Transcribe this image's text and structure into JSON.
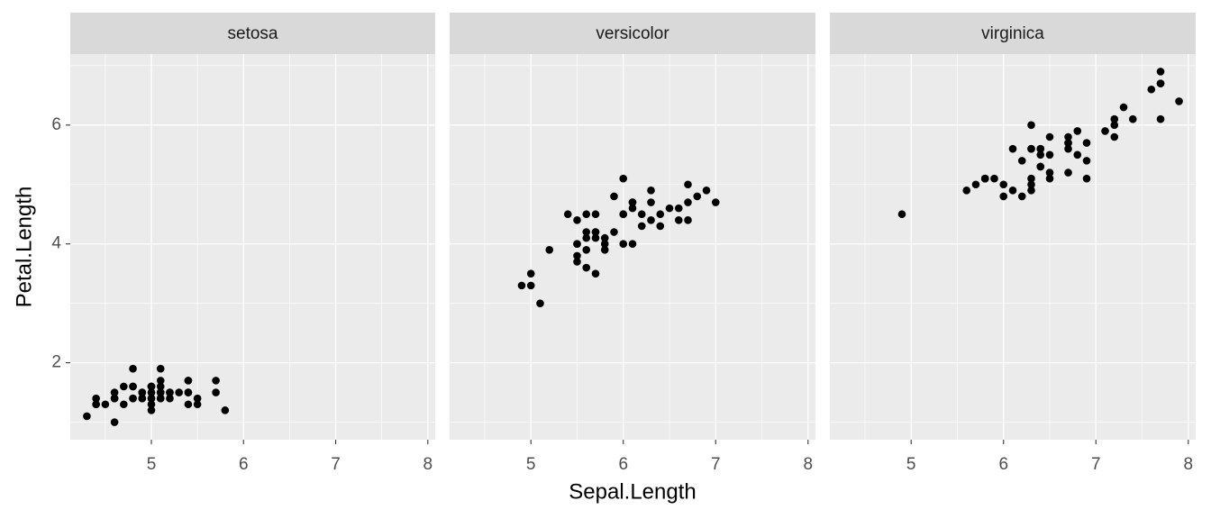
{
  "xlabel": "Sepal.Length",
  "ylabel": "Petal.Length",
  "chart_data": [
    {
      "type": "scatter",
      "title": "setosa",
      "color": "#000000",
      "x": [
        5.1,
        4.9,
        4.7,
        4.6,
        5.0,
        5.4,
        4.6,
        5.0,
        4.4,
        4.9,
        5.4,
        4.8,
        4.8,
        4.3,
        5.8,
        5.7,
        5.4,
        5.1,
        5.7,
        5.1,
        5.4,
        5.1,
        4.6,
        5.1,
        4.8,
        5.0,
        5.0,
        5.2,
        5.2,
        4.7,
        4.8,
        5.4,
        5.2,
        5.5,
        4.9,
        5.0,
        5.5,
        4.9,
        4.4,
        5.1,
        5.0,
        4.5,
        4.4,
        5.0,
        5.1,
        4.8,
        5.1,
        4.6,
        5.3,
        5.0
      ],
      "y": [
        1.4,
        1.4,
        1.3,
        1.5,
        1.4,
        1.7,
        1.4,
        1.5,
        1.4,
        1.5,
        1.5,
        1.6,
        1.4,
        1.1,
        1.2,
        1.5,
        1.3,
        1.4,
        1.7,
        1.5,
        1.7,
        1.5,
        1.0,
        1.7,
        1.9,
        1.6,
        1.6,
        1.5,
        1.4,
        1.6,
        1.6,
        1.5,
        1.5,
        1.4,
        1.5,
        1.2,
        1.3,
        1.4,
        1.3,
        1.5,
        1.3,
        1.3,
        1.3,
        1.6,
        1.9,
        1.4,
        1.6,
        1.4,
        1.5,
        1.4
      ],
      "xlim": [
        4.12,
        8.08
      ],
      "ylim": [
        0.705,
        7.195
      ],
      "xticks": [
        5,
        6,
        7,
        8
      ],
      "yticks": [
        2,
        4,
        6
      ],
      "grid": true
    },
    {
      "type": "scatter",
      "title": "versicolor",
      "color": "#000000",
      "x": [
        7.0,
        6.4,
        6.9,
        5.5,
        6.5,
        5.7,
        6.3,
        4.9,
        6.6,
        5.2,
        5.0,
        5.9,
        6.0,
        6.1,
        5.6,
        6.7,
        5.6,
        5.8,
        6.2,
        5.6,
        5.9,
        6.1,
        6.3,
        6.1,
        6.4,
        6.6,
        6.8,
        6.7,
        6.0,
        5.7,
        5.5,
        5.5,
        5.8,
        6.0,
        5.4,
        6.0,
        6.7,
        6.3,
        5.6,
        5.5,
        5.5,
        6.1,
        5.8,
        5.0,
        5.6,
        5.7,
        5.7,
        6.2,
        5.1,
        5.7
      ],
      "y": [
        4.7,
        4.5,
        4.9,
        4.0,
        4.6,
        4.5,
        4.7,
        3.3,
        4.6,
        3.9,
        3.5,
        4.2,
        4.0,
        4.7,
        3.6,
        4.4,
        4.5,
        4.1,
        4.5,
        3.9,
        4.8,
        4.0,
        4.9,
        4.7,
        4.3,
        4.4,
        4.8,
        5.0,
        4.5,
        3.5,
        3.8,
        3.7,
        3.9,
        5.1,
        4.5,
        4.5,
        4.7,
        4.4,
        4.1,
        4.0,
        4.4,
        4.6,
        4.0,
        3.3,
        4.2,
        4.2,
        4.2,
        4.3,
        3.0,
        4.1
      ],
      "xlim": [
        4.12,
        8.08
      ],
      "ylim": [
        0.705,
        7.195
      ],
      "xticks": [
        5,
        6,
        7,
        8
      ],
      "yticks": [
        2,
        4,
        6
      ],
      "grid": true
    },
    {
      "type": "scatter",
      "title": "virginica",
      "color": "#000000",
      "x": [
        6.3,
        5.8,
        7.1,
        6.3,
        6.5,
        7.6,
        4.9,
        7.3,
        6.7,
        7.2,
        6.5,
        6.4,
        6.8,
        5.7,
        5.8,
        6.4,
        6.5,
        7.7,
        7.7,
        6.0,
        6.9,
        5.6,
        7.7,
        6.3,
        6.7,
        7.2,
        6.2,
        6.1,
        6.4,
        7.2,
        7.4,
        7.9,
        6.4,
        6.3,
        6.1,
        7.7,
        6.3,
        6.4,
        6.0,
        6.9,
        6.7,
        6.9,
        5.8,
        6.8,
        6.7,
        6.7,
        6.3,
        6.5,
        6.2,
        5.9
      ],
      "y": [
        6.0,
        5.1,
        5.9,
        5.6,
        5.8,
        6.6,
        4.5,
        6.3,
        5.8,
        6.1,
        5.1,
        5.3,
        5.5,
        5.0,
        5.1,
        5.3,
        5.5,
        6.7,
        6.9,
        5.0,
        5.7,
        4.9,
        6.7,
        4.9,
        5.7,
        6.0,
        4.8,
        4.9,
        5.6,
        5.8,
        6.1,
        6.4,
        5.6,
        5.1,
        5.6,
        6.1,
        5.6,
        5.5,
        4.8,
        5.4,
        5.6,
        5.1,
        5.1,
        5.9,
        5.7,
        5.2,
        5.0,
        5.2,
        5.4,
        5.1
      ],
      "xlim": [
        4.12,
        8.08
      ],
      "ylim": [
        0.705,
        7.195
      ],
      "xticks": [
        5,
        6,
        7,
        8
      ],
      "yticks": [
        2,
        4,
        6
      ],
      "grid": true
    }
  ]
}
